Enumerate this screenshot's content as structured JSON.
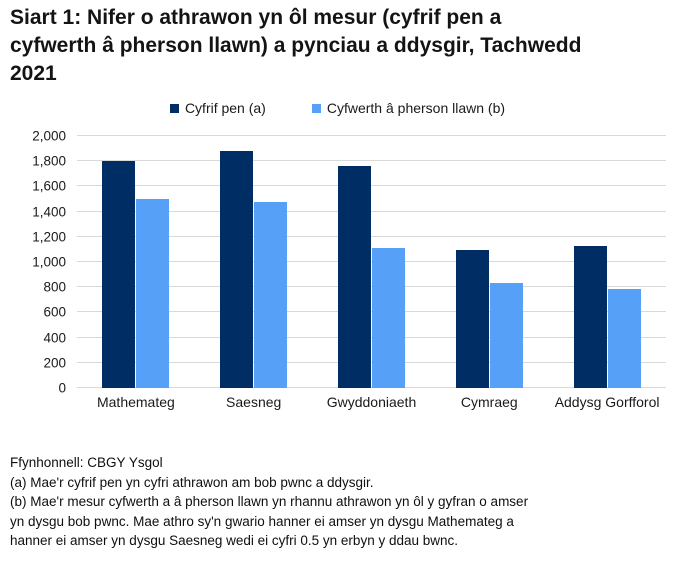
{
  "chart_data": {
    "type": "bar",
    "title": "Siart 1: Nifer o athrawon yn ôl mesur (cyfrif pen a cyfwerth â pherson llawn) a pynciau a ddysgir, Tachwedd 2021",
    "categories": [
      "Mathemateg",
      "Saesneg",
      "Gwyddoniaeth",
      "Cymraeg",
      "Addysg Gorfforol"
    ],
    "series": [
      {
        "name": "Cyfrif pen (a)",
        "color": "#002d64",
        "values": [
          1800,
          1885,
          1765,
          1095,
          1130
        ]
      },
      {
        "name": "Cyfwerth â pherson llawn (b)",
        "color": "#57a0f7",
        "values": [
          1500,
          1480,
          1115,
          835,
          785
        ]
      }
    ],
    "ylim": [
      0,
      2000
    ],
    "yticks": [
      0,
      200,
      400,
      600,
      800,
      1000,
      1200,
      1400,
      1600,
      1800,
      2000
    ],
    "yticklabels": [
      "0",
      "200",
      "400",
      "600",
      "800",
      "1,000",
      "1,200",
      "1,400",
      "1,600",
      "1,800",
      "2,000"
    ],
    "xlabel": "",
    "ylabel": "",
    "grid": "horizontal",
    "gridline_color": "#d9d9d9",
    "legend_position": "top-center"
  },
  "footnotes": {
    "source": "Ffynhonnell: CBGY Ysgol",
    "note_a": "(a) Mae'r cyfrif pen yn cyfri athrawon am bob pwnc a ddysgir.",
    "note_b": "(b) Mae'r mesur cyfwerth a â pherson llawn yn rhannu athrawon yn ôl y gyfran o amser yn dysgu bob pwnc. Mae athro sy'n gwario hanner ei amser yn dysgu Mathemateg a hanner ei amser yn dysgu Saesneg wedi ei cyfri 0.5 yn erbyn y ddau bwnc."
  }
}
